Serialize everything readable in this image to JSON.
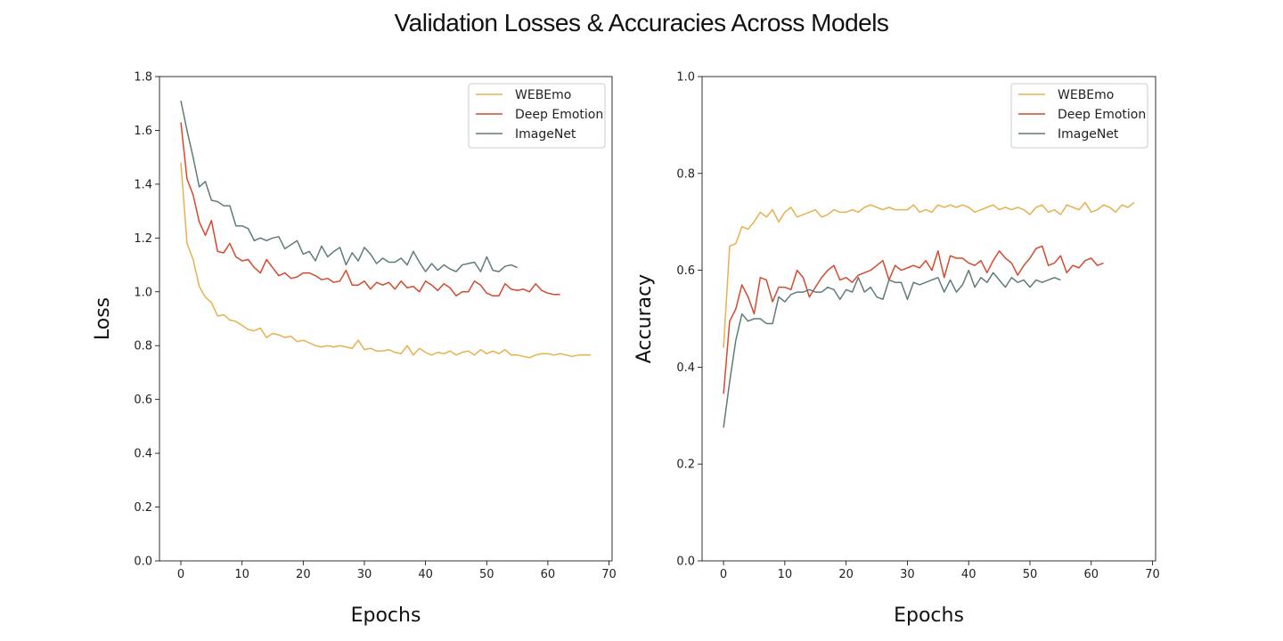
{
  "figure": {
    "title": "Validation Losses & Accuracies Across Models"
  },
  "colors": {
    "WEBEmo": "#e8b04f",
    "Deep Emotion": "#d44a2e",
    "ImageNet": "#5f7b7c"
  },
  "chart_data": [
    {
      "type": "line",
      "title": "",
      "xlabel": "Epochs",
      "ylabel": "Loss",
      "xlim": [
        -3.5,
        70.5
      ],
      "ylim": [
        0.0,
        1.8
      ],
      "xticks": [
        "0",
        "10",
        "20",
        "30",
        "40",
        "50",
        "60",
        "70"
      ],
      "yticks": [
        "0.0",
        "0.2",
        "0.4",
        "0.6",
        "0.8",
        "1.0",
        "1.2",
        "1.4",
        "1.6",
        "1.8"
      ],
      "legend": "top-right",
      "grid": false,
      "series": [
        {
          "name": "WEBEmo",
          "values": [
            1.48,
            1.18,
            1.12,
            1.02,
            0.98,
            0.96,
            0.91,
            0.915,
            0.895,
            0.89,
            0.875,
            0.86,
            0.855,
            0.865,
            0.83,
            0.845,
            0.84,
            0.83,
            0.835,
            0.815,
            0.82,
            0.81,
            0.8,
            0.795,
            0.8,
            0.795,
            0.8,
            0.795,
            0.79,
            0.82,
            0.785,
            0.79,
            0.78,
            0.78,
            0.785,
            0.775,
            0.77,
            0.8,
            0.765,
            0.79,
            0.775,
            0.765,
            0.775,
            0.77,
            0.78,
            0.765,
            0.775,
            0.78,
            0.765,
            0.785,
            0.77,
            0.78,
            0.77,
            0.785,
            0.765,
            0.765,
            0.76,
            0.755,
            0.765,
            0.77,
            0.77,
            0.765,
            0.77,
            0.765,
            0.76,
            0.765,
            0.765,
            0.765
          ]
        },
        {
          "name": "Deep Emotion",
          "values": [
            1.63,
            1.42,
            1.36,
            1.26,
            1.21,
            1.265,
            1.15,
            1.145,
            1.18,
            1.13,
            1.115,
            1.12,
            1.09,
            1.07,
            1.12,
            1.09,
            1.06,
            1.07,
            1.05,
            1.055,
            1.07,
            1.07,
            1.06,
            1.045,
            1.05,
            1.035,
            1.04,
            1.08,
            1.025,
            1.025,
            1.04,
            1.01,
            1.035,
            1.025,
            1.035,
            1.01,
            1.04,
            1.015,
            1.02,
            1.0,
            1.04,
            1.025,
            1.005,
            1.03,
            1.015,
            0.985,
            1.0,
            1.0,
            1.04,
            1.025,
            0.995,
            0.985,
            0.985,
            1.03,
            1.01,
            1.005,
            1.01,
            1.0,
            1.03,
            1.005,
            0.995,
            0.99,
            0.99
          ]
        },
        {
          "name": "ImageNet",
          "values": [
            1.71,
            1.6,
            1.5,
            1.39,
            1.41,
            1.34,
            1.335,
            1.32,
            1.32,
            1.245,
            1.245,
            1.235,
            1.19,
            1.2,
            1.19,
            1.2,
            1.205,
            1.16,
            1.175,
            1.19,
            1.14,
            1.15,
            1.115,
            1.17,
            1.13,
            1.15,
            1.165,
            1.1,
            1.145,
            1.115,
            1.165,
            1.14,
            1.105,
            1.125,
            1.11,
            1.11,
            1.125,
            1.1,
            1.15,
            1.11,
            1.075,
            1.105,
            1.08,
            1.1,
            1.085,
            1.075,
            1.1,
            1.105,
            1.11,
            1.075,
            1.13,
            1.08,
            1.075,
            1.095,
            1.1,
            1.09
          ]
        }
      ]
    },
    {
      "type": "line",
      "title": "",
      "xlabel": "Epochs",
      "ylabel": "Accuracy",
      "xlim": [
        -3.5,
        70.5
      ],
      "ylim": [
        0.0,
        1.0
      ],
      "xticks": [
        "0",
        "10",
        "20",
        "30",
        "40",
        "50",
        "60",
        "70"
      ],
      "yticks": [
        "0.0",
        "0.2",
        "0.4",
        "0.6",
        "0.8",
        "1.0"
      ],
      "legend": "top-right",
      "grid": false,
      "series": [
        {
          "name": "WEBEmo",
          "values": [
            0.44,
            0.65,
            0.655,
            0.69,
            0.685,
            0.7,
            0.72,
            0.71,
            0.725,
            0.7,
            0.72,
            0.73,
            0.71,
            0.715,
            0.72,
            0.725,
            0.71,
            0.715,
            0.725,
            0.72,
            0.72,
            0.725,
            0.72,
            0.73,
            0.735,
            0.73,
            0.725,
            0.73,
            0.725,
            0.725,
            0.725,
            0.735,
            0.72,
            0.725,
            0.72,
            0.735,
            0.73,
            0.735,
            0.73,
            0.735,
            0.73,
            0.72,
            0.725,
            0.73,
            0.735,
            0.725,
            0.73,
            0.725,
            0.73,
            0.725,
            0.715,
            0.73,
            0.735,
            0.72,
            0.725,
            0.715,
            0.735,
            0.73,
            0.725,
            0.74,
            0.72,
            0.725,
            0.735,
            0.73,
            0.72,
            0.735,
            0.73,
            0.74
          ]
        },
        {
          "name": "Deep Emotion",
          "values": [
            0.345,
            0.495,
            0.52,
            0.57,
            0.545,
            0.51,
            0.585,
            0.58,
            0.535,
            0.565,
            0.565,
            0.56,
            0.6,
            0.585,
            0.545,
            0.565,
            0.585,
            0.6,
            0.61,
            0.58,
            0.585,
            0.575,
            0.59,
            0.595,
            0.6,
            0.61,
            0.62,
            0.58,
            0.61,
            0.6,
            0.605,
            0.61,
            0.605,
            0.62,
            0.6,
            0.64,
            0.585,
            0.63,
            0.625,
            0.625,
            0.615,
            0.61,
            0.62,
            0.595,
            0.62,
            0.64,
            0.625,
            0.615,
            0.59,
            0.61,
            0.625,
            0.645,
            0.65,
            0.61,
            0.615,
            0.63,
            0.595,
            0.61,
            0.605,
            0.62,
            0.625,
            0.61,
            0.615
          ]
        },
        {
          "name": "ImageNet",
          "values": [
            0.275,
            0.37,
            0.455,
            0.51,
            0.495,
            0.5,
            0.5,
            0.49,
            0.49,
            0.545,
            0.535,
            0.55,
            0.555,
            0.555,
            0.56,
            0.555,
            0.555,
            0.565,
            0.56,
            0.54,
            0.56,
            0.555,
            0.585,
            0.555,
            0.565,
            0.545,
            0.54,
            0.58,
            0.575,
            0.575,
            0.54,
            0.575,
            0.57,
            0.575,
            0.58,
            0.585,
            0.555,
            0.58,
            0.555,
            0.57,
            0.6,
            0.565,
            0.585,
            0.575,
            0.595,
            0.58,
            0.565,
            0.585,
            0.575,
            0.58,
            0.565,
            0.58,
            0.575,
            0.58,
            0.585,
            0.58
          ]
        }
      ]
    }
  ]
}
